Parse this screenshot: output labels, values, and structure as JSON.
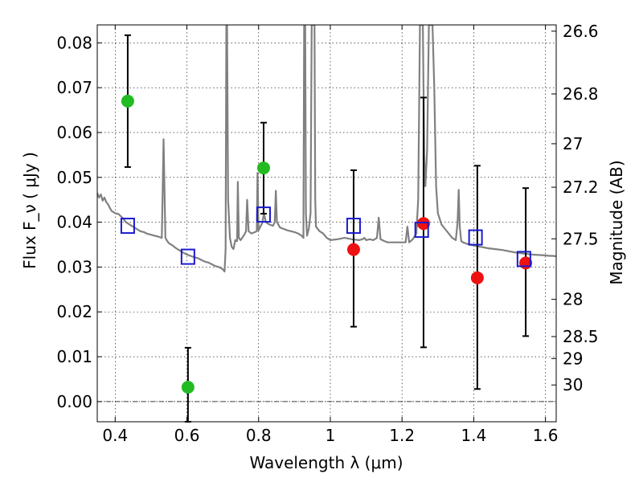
{
  "chart_data": {
    "type": "scatter",
    "title": "",
    "xlabel": "Wavelength  λ (μm)",
    "ylabel": "Flux  F_ν  ( μJy )",
    "ylabel_right": "Magnitude (AB)",
    "xlim": [
      0.35,
      1.63
    ],
    "ylim": [
      -0.0045,
      0.084
    ],
    "grid": true,
    "x_ticks": [
      0.4,
      0.6,
      0.8,
      1.0,
      1.2,
      1.4,
      1.6
    ],
    "x_tick_labels": [
      "0.4",
      "0.6",
      "0.8",
      "1",
      "1.2",
      "1.4",
      "1.6"
    ],
    "y_ticks": [
      0.0,
      0.01,
      0.02,
      0.03,
      0.04,
      0.05,
      0.06,
      0.07,
      0.08
    ],
    "y_tick_labels": [
      "0.00",
      "0.01",
      "0.02",
      "0.03",
      "0.04",
      "0.05",
      "0.06",
      "0.07",
      "0.08"
    ],
    "right_ticks": [
      {
        "label": "26.6",
        "flux": 0.0826
      },
      {
        "label": "26.8",
        "flux": 0.0686
      },
      {
        "label": "27",
        "flux": 0.0575
      },
      {
        "label": "27.2",
        "flux": 0.0478
      },
      {
        "label": "27.5",
        "flux": 0.0363
      },
      {
        "label": "28",
        "flux": 0.0228
      },
      {
        "label": "28.5",
        "flux": 0.0145
      },
      {
        "label": "29",
        "flux": 0.0096
      },
      {
        "label": "30",
        "flux": 0.0037
      }
    ],
    "series": [
      {
        "name": "green photometry",
        "marker": "circle",
        "color": "#22bb22",
        "points": [
          {
            "x": 0.435,
            "y": 0.067,
            "ylo": 0.0523,
            "yhi": 0.0817
          },
          {
            "x": 0.603,
            "y": 0.0032,
            "ylo": -0.0045,
            "yhi": 0.012
          },
          {
            "x": 0.814,
            "y": 0.0521,
            "ylo": 0.0419,
            "yhi": 0.0622
          }
        ]
      },
      {
        "name": "red photometry",
        "marker": "circle",
        "color": "#ee1111",
        "points": [
          {
            "x": 1.065,
            "y": 0.0339,
            "ylo": 0.0167,
            "yhi": 0.0516
          },
          {
            "x": 1.26,
            "y": 0.0397,
            "ylo": 0.0121,
            "yhi": 0.0678
          },
          {
            "x": 1.41,
            "y": 0.0276,
            "ylo": 0.0028,
            "yhi": 0.0526
          },
          {
            "x": 1.545,
            "y": 0.0309,
            "ylo": 0.0146,
            "yhi": 0.0476
          }
        ]
      },
      {
        "name": "model photometry",
        "marker": "square",
        "color": "#1a1ad0",
        "points": [
          {
            "x": 0.435,
            "y": 0.0392
          },
          {
            "x": 0.603,
            "y": 0.0323
          },
          {
            "x": 0.814,
            "y": 0.0417
          },
          {
            "x": 1.065,
            "y": 0.0392
          },
          {
            "x": 1.255,
            "y": 0.0383
          },
          {
            "x": 1.405,
            "y": 0.0366
          },
          {
            "x": 1.54,
            "y": 0.0318
          }
        ]
      }
    ],
    "spectrum": {
      "name": "model spectrum",
      "color": "#808080",
      "points": [
        [
          0.35,
          0.0465
        ],
        [
          0.355,
          0.0455
        ],
        [
          0.36,
          0.0462
        ],
        [
          0.365,
          0.0448
        ],
        [
          0.37,
          0.0455
        ],
        [
          0.375,
          0.0445
        ],
        [
          0.38,
          0.044
        ],
        [
          0.385,
          0.0432
        ],
        [
          0.39,
          0.0425
        ],
        [
          0.4,
          0.042
        ],
        [
          0.41,
          0.0418
        ],
        [
          0.42,
          0.041
        ],
        [
          0.43,
          0.04
        ],
        [
          0.44,
          0.0395
        ],
        [
          0.45,
          0.039
        ],
        [
          0.46,
          0.0385
        ],
        [
          0.47,
          0.038
        ],
        [
          0.48,
          0.0378
        ],
        [
          0.49,
          0.0374
        ],
        [
          0.5,
          0.0372
        ],
        [
          0.51,
          0.037
        ],
        [
          0.52,
          0.0368
        ],
        [
          0.53,
          0.0365
        ],
        [
          0.532,
          0.045
        ],
        [
          0.535,
          0.0585
        ],
        [
          0.538,
          0.045
        ],
        [
          0.54,
          0.0365
        ],
        [
          0.545,
          0.0358
        ],
        [
          0.55,
          0.0353
        ],
        [
          0.56,
          0.0348
        ],
        [
          0.57,
          0.0342
        ],
        [
          0.58,
          0.0337
        ],
        [
          0.59,
          0.0332
        ],
        [
          0.6,
          0.0328
        ],
        [
          0.61,
          0.0325
        ],
        [
          0.62,
          0.0322
        ],
        [
          0.63,
          0.032
        ],
        [
          0.64,
          0.0316
        ],
        [
          0.65,
          0.0312
        ],
        [
          0.66,
          0.031
        ],
        [
          0.67,
          0.0306
        ],
        [
          0.68,
          0.0302
        ],
        [
          0.69,
          0.03
        ],
        [
          0.7,
          0.0295
        ],
        [
          0.705,
          0.029
        ],
        [
          0.708,
          0.034
        ],
        [
          0.71,
          0.084
        ],
        [
          0.712,
          0.084
        ],
        [
          0.715,
          0.045
        ],
        [
          0.72,
          0.0365
        ],
        [
          0.725,
          0.0345
        ],
        [
          0.73,
          0.034
        ],
        [
          0.735,
          0.036
        ],
        [
          0.74,
          0.0358
        ],
        [
          0.742,
          0.049
        ],
        [
          0.745,
          0.0365
        ],
        [
          0.75,
          0.036
        ],
        [
          0.76,
          0.0372
        ],
        [
          0.765,
          0.038
        ],
        [
          0.768,
          0.045
        ],
        [
          0.772,
          0.038
        ],
        [
          0.78,
          0.0375
        ],
        [
          0.79,
          0.0378
        ],
        [
          0.795,
          0.038
        ],
        [
          0.797,
          0.051
        ],
        [
          0.8,
          0.0382
        ],
        [
          0.81,
          0.0398
        ],
        [
          0.815,
          0.042
        ],
        [
          0.82,
          0.04
        ],
        [
          0.83,
          0.0395
        ],
        [
          0.84,
          0.0392
        ],
        [
          0.845,
          0.04
        ],
        [
          0.848,
          0.047
        ],
        [
          0.851,
          0.04
        ],
        [
          0.86,
          0.0388
        ],
        [
          0.87,
          0.0385
        ],
        [
          0.88,
          0.0382
        ],
        [
          0.89,
          0.038
        ],
        [
          0.9,
          0.0378
        ],
        [
          0.91,
          0.0375
        ],
        [
          0.92,
          0.037
        ],
        [
          0.925,
          0.0365
        ],
        [
          0.927,
          0.084
        ],
        [
          0.93,
          0.084
        ],
        [
          0.932,
          0.042
        ],
        [
          0.935,
          0.037
        ],
        [
          0.94,
          0.0385
        ],
        [
          0.945,
          0.042
        ],
        [
          0.948,
          0.084
        ],
        [
          0.953,
          0.084
        ],
        [
          0.956,
          0.084
        ],
        [
          0.958,
          0.045
        ],
        [
          0.96,
          0.039
        ],
        [
          0.97,
          0.038
        ],
        [
          0.98,
          0.0375
        ],
        [
          0.99,
          0.0365
        ],
        [
          1.0,
          0.036
        ],
        [
          1.02,
          0.0362
        ],
        [
          1.04,
          0.0365
        ],
        [
          1.06,
          0.0362
        ],
        [
          1.08,
          0.036
        ],
        [
          1.09,
          0.0362
        ],
        [
          1.095,
          0.0365
        ],
        [
          1.1,
          0.036
        ],
        [
          1.11,
          0.0362
        ],
        [
          1.12,
          0.036
        ],
        [
          1.13,
          0.0365
        ],
        [
          1.135,
          0.041
        ],
        [
          1.14,
          0.0362
        ],
        [
          1.15,
          0.0358
        ],
        [
          1.16,
          0.0355
        ],
        [
          1.18,
          0.0355
        ],
        [
          1.2,
          0.0355
        ],
        [
          1.21,
          0.0355
        ],
        [
          1.215,
          0.039
        ],
        [
          1.22,
          0.0355
        ],
        [
          1.23,
          0.0362
        ],
        [
          1.24,
          0.0375
        ],
        [
          1.245,
          0.045
        ],
        [
          1.25,
          0.084
        ],
        [
          1.258,
          0.084
        ],
        [
          1.262,
          0.055
        ],
        [
          1.265,
          0.048
        ],
        [
          1.27,
          0.056
        ],
        [
          1.275,
          0.084
        ],
        [
          1.285,
          0.084
        ],
        [
          1.29,
          0.07
        ],
        [
          1.295,
          0.048
        ],
        [
          1.3,
          0.042
        ],
        [
          1.31,
          0.0395
        ],
        [
          1.32,
          0.0385
        ],
        [
          1.33,
          0.0375
        ],
        [
          1.34,
          0.0365
        ],
        [
          1.35,
          0.036
        ],
        [
          1.355,
          0.04
        ],
        [
          1.358,
          0.0472
        ],
        [
          1.361,
          0.039
        ],
        [
          1.365,
          0.0358
        ],
        [
          1.37,
          0.0355
        ],
        [
          1.38,
          0.0352
        ],
        [
          1.39,
          0.035
        ],
        [
          1.4,
          0.0348
        ],
        [
          1.42,
          0.0345
        ],
        [
          1.44,
          0.0342
        ],
        [
          1.46,
          0.034
        ],
        [
          1.48,
          0.0338
        ],
        [
          1.5,
          0.0335
        ],
        [
          1.52,
          0.0332
        ],
        [
          1.54,
          0.033
        ],
        [
          1.56,
          0.0328
        ],
        [
          1.58,
          0.0327
        ],
        [
          1.6,
          0.0326
        ],
        [
          1.61,
          0.0325
        ],
        [
          1.62,
          0.0325
        ],
        [
          1.63,
          0.0324
        ]
      ]
    }
  }
}
